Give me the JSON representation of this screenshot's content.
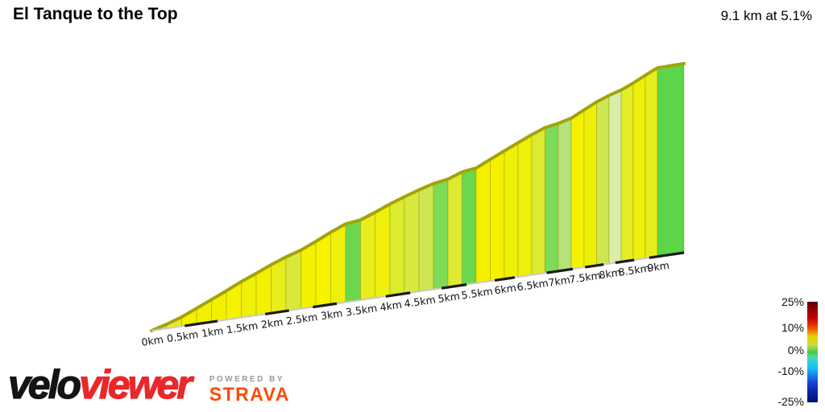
{
  "header": {
    "title": "El Tanque to the Top",
    "summary": "9.1 km at 5.1%"
  },
  "branding": {
    "velo": "velo",
    "viewer": "viewer",
    "powered_by": "POWERED BY",
    "strava": "STRAVA",
    "viewer_color": "#e8282b",
    "strava_color": "#fc4c02"
  },
  "chart_data": {
    "type": "area",
    "title": "El Tanque to the Top",
    "total_distance_km": 9.1,
    "average_gradient_pct": 5.1,
    "x_axis_unit": "km",
    "x_tick_km": [
      0,
      0.5,
      1,
      1.5,
      2,
      2.5,
      3,
      3.5,
      4,
      4.5,
      5,
      5.5,
      6,
      6.5,
      7,
      7.5,
      8,
      8.5,
      9
    ],
    "x_tick_labels": [
      "0km",
      "0.5km",
      "1km",
      "1.5km",
      "2km",
      "2.5km",
      "3km",
      "3.5km",
      "4km",
      "4.5km",
      "5km",
      "5.5km",
      "6km",
      "6.5km",
      "7km",
      "7.5km",
      "8km",
      "8.5km",
      "9km"
    ],
    "segments": [
      {
        "km0": 0.0,
        "km1": 0.25,
        "gradient_pct": 4.5,
        "color": "#cfe651"
      },
      {
        "km0": 0.25,
        "km1": 0.5,
        "gradient_pct": 5.5,
        "color": "#e4ec28"
      },
      {
        "km0": 0.5,
        "km1": 0.75,
        "gradient_pct": 7.0,
        "color": "#f4f000"
      },
      {
        "km0": 0.75,
        "km1": 1.0,
        "gradient_pct": 7.0,
        "color": "#f2ef04"
      },
      {
        "km0": 1.0,
        "km1": 1.25,
        "gradient_pct": 7.0,
        "color": "#f4f000"
      },
      {
        "km0": 1.25,
        "km1": 1.5,
        "gradient_pct": 7.5,
        "color": "#f6f200"
      },
      {
        "km0": 1.5,
        "km1": 1.75,
        "gradient_pct": 6.5,
        "color": "#eef00a"
      },
      {
        "km0": 1.75,
        "km1": 2.0,
        "gradient_pct": 7.0,
        "color": "#f4f000"
      },
      {
        "km0": 2.0,
        "km1": 2.25,
        "gradient_pct": 6.0,
        "color": "#e8ed1c"
      },
      {
        "km0": 2.25,
        "km1": 2.5,
        "gradient_pct": 5.0,
        "color": "#d8e93c"
      },
      {
        "km0": 2.5,
        "km1": 2.75,
        "gradient_pct": 7.0,
        "color": "#f4f000"
      },
      {
        "km0": 2.75,
        "km1": 3.0,
        "gradient_pct": 7.5,
        "color": "#f6f200"
      },
      {
        "km0": 3.0,
        "km1": 3.25,
        "gradient_pct": 6.5,
        "color": "#eef00a"
      },
      {
        "km0": 3.25,
        "km1": 3.5,
        "gradient_pct": 2.0,
        "color": "#6ad84f"
      },
      {
        "km0": 3.5,
        "km1": 3.75,
        "gradient_pct": 6.0,
        "color": "#e8ed1c"
      },
      {
        "km0": 3.75,
        "km1": 4.0,
        "gradient_pct": 6.5,
        "color": "#eef00a"
      },
      {
        "km0": 4.0,
        "km1": 4.25,
        "gradient_pct": 5.5,
        "color": "#dcea30"
      },
      {
        "km0": 4.25,
        "km1": 4.5,
        "gradient_pct": 5.0,
        "color": "#d8e93c"
      },
      {
        "km0": 4.5,
        "km1": 4.75,
        "gradient_pct": 4.5,
        "color": "#cfe651"
      },
      {
        "km0": 4.75,
        "km1": 5.0,
        "gradient_pct": 2.5,
        "color": "#7edb58"
      },
      {
        "km0": 5.0,
        "km1": 5.25,
        "gradient_pct": 5.5,
        "color": "#dcea30"
      },
      {
        "km0": 5.25,
        "km1": 5.5,
        "gradient_pct": 2.0,
        "color": "#6ad84f"
      },
      {
        "km0": 5.5,
        "km1": 5.75,
        "gradient_pct": 7.0,
        "color": "#f4f000"
      },
      {
        "km0": 5.75,
        "km1": 6.0,
        "gradient_pct": 7.0,
        "color": "#f4f000"
      },
      {
        "km0": 6.0,
        "km1": 6.25,
        "gradient_pct": 6.5,
        "color": "#eef00a"
      },
      {
        "km0": 6.25,
        "km1": 6.5,
        "gradient_pct": 6.5,
        "color": "#eef00a"
      },
      {
        "km0": 6.5,
        "km1": 6.75,
        "gradient_pct": 5.5,
        "color": "#dcea30"
      },
      {
        "km0": 6.75,
        "km1": 7.0,
        "gradient_pct": 2.5,
        "color": "#7edb58"
      },
      {
        "km0": 7.0,
        "km1": 7.25,
        "gradient_pct": 3.5,
        "color": "#b4e378"
      },
      {
        "km0": 7.25,
        "km1": 7.5,
        "gradient_pct": 7.0,
        "color": "#f4f000"
      },
      {
        "km0": 7.5,
        "km1": 7.75,
        "gradient_pct": 6.5,
        "color": "#eef00a"
      },
      {
        "km0": 7.75,
        "km1": 8.0,
        "gradient_pct": 5.0,
        "color": "#cfe651"
      },
      {
        "km0": 8.0,
        "km1": 8.25,
        "gradient_pct": 4.0,
        "color": "#d9eeab"
      },
      {
        "km0": 8.25,
        "km1": 8.5,
        "gradient_pct": 5.5,
        "color": "#e4ec28"
      },
      {
        "km0": 8.5,
        "km1": 8.75,
        "gradient_pct": 6.5,
        "color": "#eef00a"
      },
      {
        "km0": 8.75,
        "km1": 9.0,
        "gradient_pct": 6.0,
        "color": "#e8ed1c"
      },
      {
        "km0": 9.0,
        "km1": 9.1,
        "gradient_pct": 1.0,
        "color": "#5cd648"
      }
    ],
    "axis_dashes_km": [
      [
        0.55,
        1.1
      ],
      [
        1.9,
        2.3
      ],
      [
        2.7,
        3.1
      ],
      [
        3.93,
        4.35
      ],
      [
        4.89,
        5.33
      ],
      [
        5.83,
        6.19
      ],
      [
        6.78,
        7.28
      ],
      [
        7.52,
        7.89
      ],
      [
        8.13,
        8.52
      ],
      [
        8.83,
        9.1
      ]
    ],
    "legend": {
      "labels": [
        {
          "text": "25%",
          "pos": 0.0
        },
        {
          "text": "10%",
          "pos": 0.256
        },
        {
          "text": "0%",
          "pos": 0.48
        },
        {
          "text": "-10%",
          "pos": 0.688
        },
        {
          "text": "-25%",
          "pos": 0.992
        }
      ],
      "gradient_stops": [
        {
          "pos": 0.0,
          "color": "#5c0000"
        },
        {
          "pos": 0.07,
          "color": "#8e0000"
        },
        {
          "pos": 0.16,
          "color": "#c40000"
        },
        {
          "pos": 0.23,
          "color": "#e03000"
        },
        {
          "pos": 0.29,
          "color": "#f07800"
        },
        {
          "pos": 0.34,
          "color": "#e8cc00"
        },
        {
          "pos": 0.38,
          "color": "#ded800"
        },
        {
          "pos": 0.42,
          "color": "#c8dc48"
        },
        {
          "pos": 0.46,
          "color": "#94d84c"
        },
        {
          "pos": 0.5,
          "color": "#40cc40"
        },
        {
          "pos": 0.55,
          "color": "#50d4a8"
        },
        {
          "pos": 0.6,
          "color": "#28d0dc"
        },
        {
          "pos": 0.66,
          "color": "#18c0f0"
        },
        {
          "pos": 0.72,
          "color": "#1a88e8"
        },
        {
          "pos": 0.8,
          "color": "#1448d4"
        },
        {
          "pos": 0.9,
          "color": "#0824a4"
        },
        {
          "pos": 1.0,
          "color": "#021268"
        }
      ],
      "range_pct": [
        -25,
        25
      ]
    }
  }
}
